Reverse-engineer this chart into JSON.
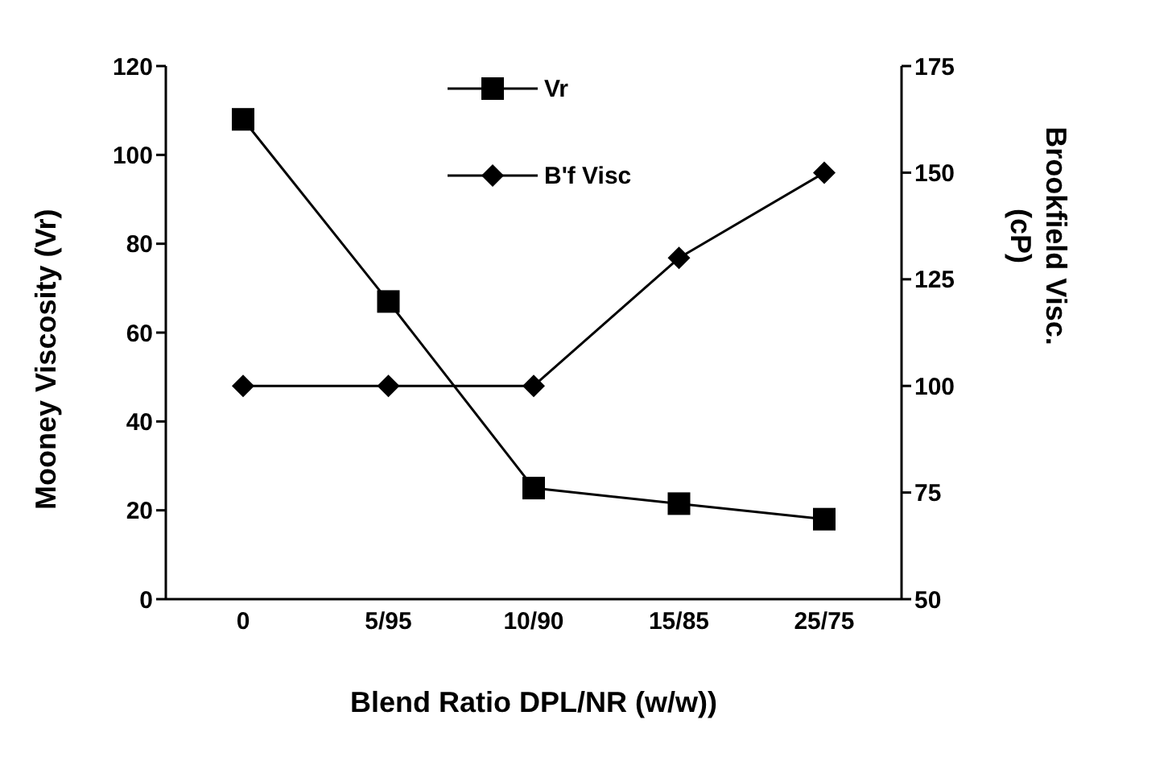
{
  "chart_data": {
    "type": "line",
    "xlabel": "Blend Ratio DPL/NR (w/w))",
    "ylabel": "Mooney Viscosity (Vr)",
    "y2label": "Brookfield Visc. (cP)",
    "categories": [
      "0",
      "5/95",
      "10/90",
      "15/85",
      "25/75"
    ],
    "series": [
      {
        "name": "Vr",
        "color": "#000000",
        "marker": "square",
        "values": [
          108,
          67,
          25,
          21.5,
          18
        ]
      },
      {
        "name": "B'f Visc",
        "color": "#000000",
        "marker": "diamond",
        "axis": "y2",
        "values": [
          100,
          100,
          100,
          130,
          150
        ]
      }
    ],
    "ylim": [
      0,
      120
    ],
    "yticks": [
      0,
      20,
      40,
      60,
      80,
      100,
      120
    ],
    "y2lim": [
      50,
      175
    ],
    "y2ticks": [
      50,
      75,
      100,
      125,
      150,
      175
    ],
    "legend": "top",
    "line_style": "solid"
  }
}
